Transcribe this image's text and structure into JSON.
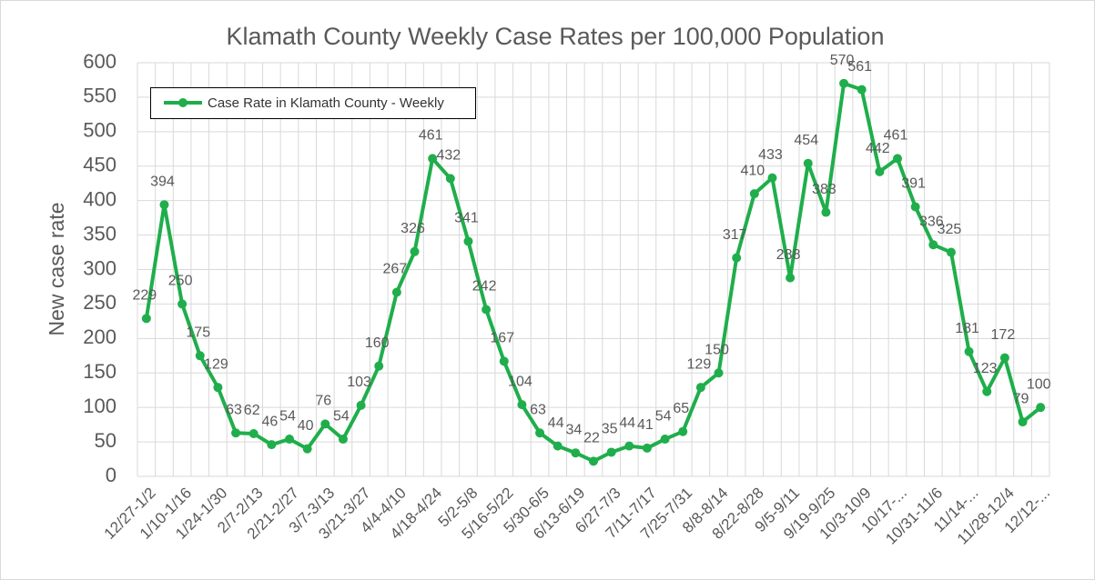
{
  "chart_data": {
    "type": "line",
    "title": "Klamath County Weekly Case Rates per 100,000 Population",
    "ylabel": "New case rate",
    "categories": [
      "12/27-1/2",
      null,
      "1/10-1/16",
      null,
      "1/24-1/30",
      null,
      "2/7-2/13",
      null,
      "2/21-2/27",
      null,
      "3/7-3/13",
      null,
      "3/21-3/27",
      null,
      "4/4-4/10",
      null,
      "4/18-4/24",
      null,
      "5/2-5/8",
      null,
      "5/16-5/22",
      null,
      "5/30-6/5",
      null,
      "6/13-6/19",
      null,
      "6/27-7/3",
      null,
      "7/11-7/17",
      null,
      "7/25-7/31",
      null,
      "8/8-8/14",
      null,
      "8/22-8/28",
      null,
      "9/5-9/11",
      null,
      "9/19-9/25",
      null,
      "10/3-10/9",
      null,
      "10/17-...",
      null,
      "10/31-11/6",
      null,
      "11/14-...",
      null,
      "11/28-12/4",
      null,
      "12/12-..."
    ],
    "series": [
      {
        "name": "Case Rate in Klamath County - Weekly",
        "color": "#1fae4b",
        "values": [
          229,
          394,
          250,
          175,
          129,
          63,
          62,
          46,
          54,
          40,
          76,
          54,
          103,
          160,
          267,
          326,
          461,
          432,
          341,
          242,
          167,
          104,
          63,
          44,
          34,
          22,
          35,
          44,
          41,
          54,
          65,
          129,
          150,
          317,
          410,
          433,
          288,
          454,
          383,
          570,
          561,
          442,
          461,
          391,
          336,
          325,
          181,
          123,
          172,
          79,
          100
        ]
      }
    ],
    "ylim": [
      0,
      600
    ],
    "yticks": [
      0,
      50,
      100,
      150,
      200,
      250,
      300,
      350,
      400,
      450,
      500,
      550,
      600
    ],
    "grid": true,
    "legend": "upper left"
  }
}
